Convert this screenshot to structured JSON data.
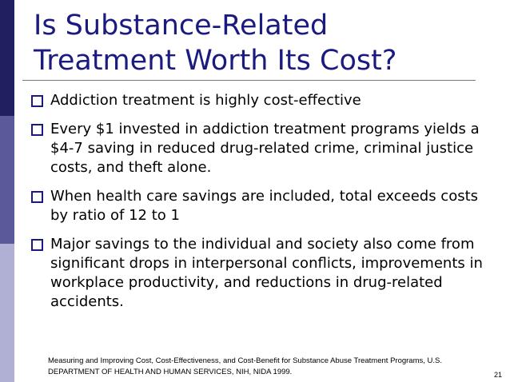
{
  "slide": {
    "title_lines": [
      "Is Substance-Related",
      "Treatment Worth Its Cost?"
    ],
    "bullets": [
      "Addiction treatment is highly cost-effective",
      "Every $1 invested in addiction treatment programs yields a $4-7 saving in reduced drug-related crime, criminal justice costs, and theft alone.",
      "When health care savings are included, total exceeds costs by ratio of 12 to 1",
      "Major savings to the individual and society also come from significant drops in interpersonal conflicts, improvements in workplace productivity, and reductions in drug-related accidents."
    ],
    "citation_lines": [
      "Measuring and Improving Cost, Cost-Effectiveness, and Cost-Benefit for Substance Abuse Treatment Programs, U.S.",
      "DEPARTMENT OF HEALTH AND HUMAN SERVICES, NIH, NIDA 1999."
    ],
    "page_number": "21",
    "colors": {
      "title": "#1a1a80",
      "bar_dark": "#202060",
      "bar_mid": "#5a5a9a",
      "bar_light": "#b0b0d4",
      "bullet_box": "#1a1a80"
    },
    "bullet_icon": "hollow-square-icon"
  }
}
